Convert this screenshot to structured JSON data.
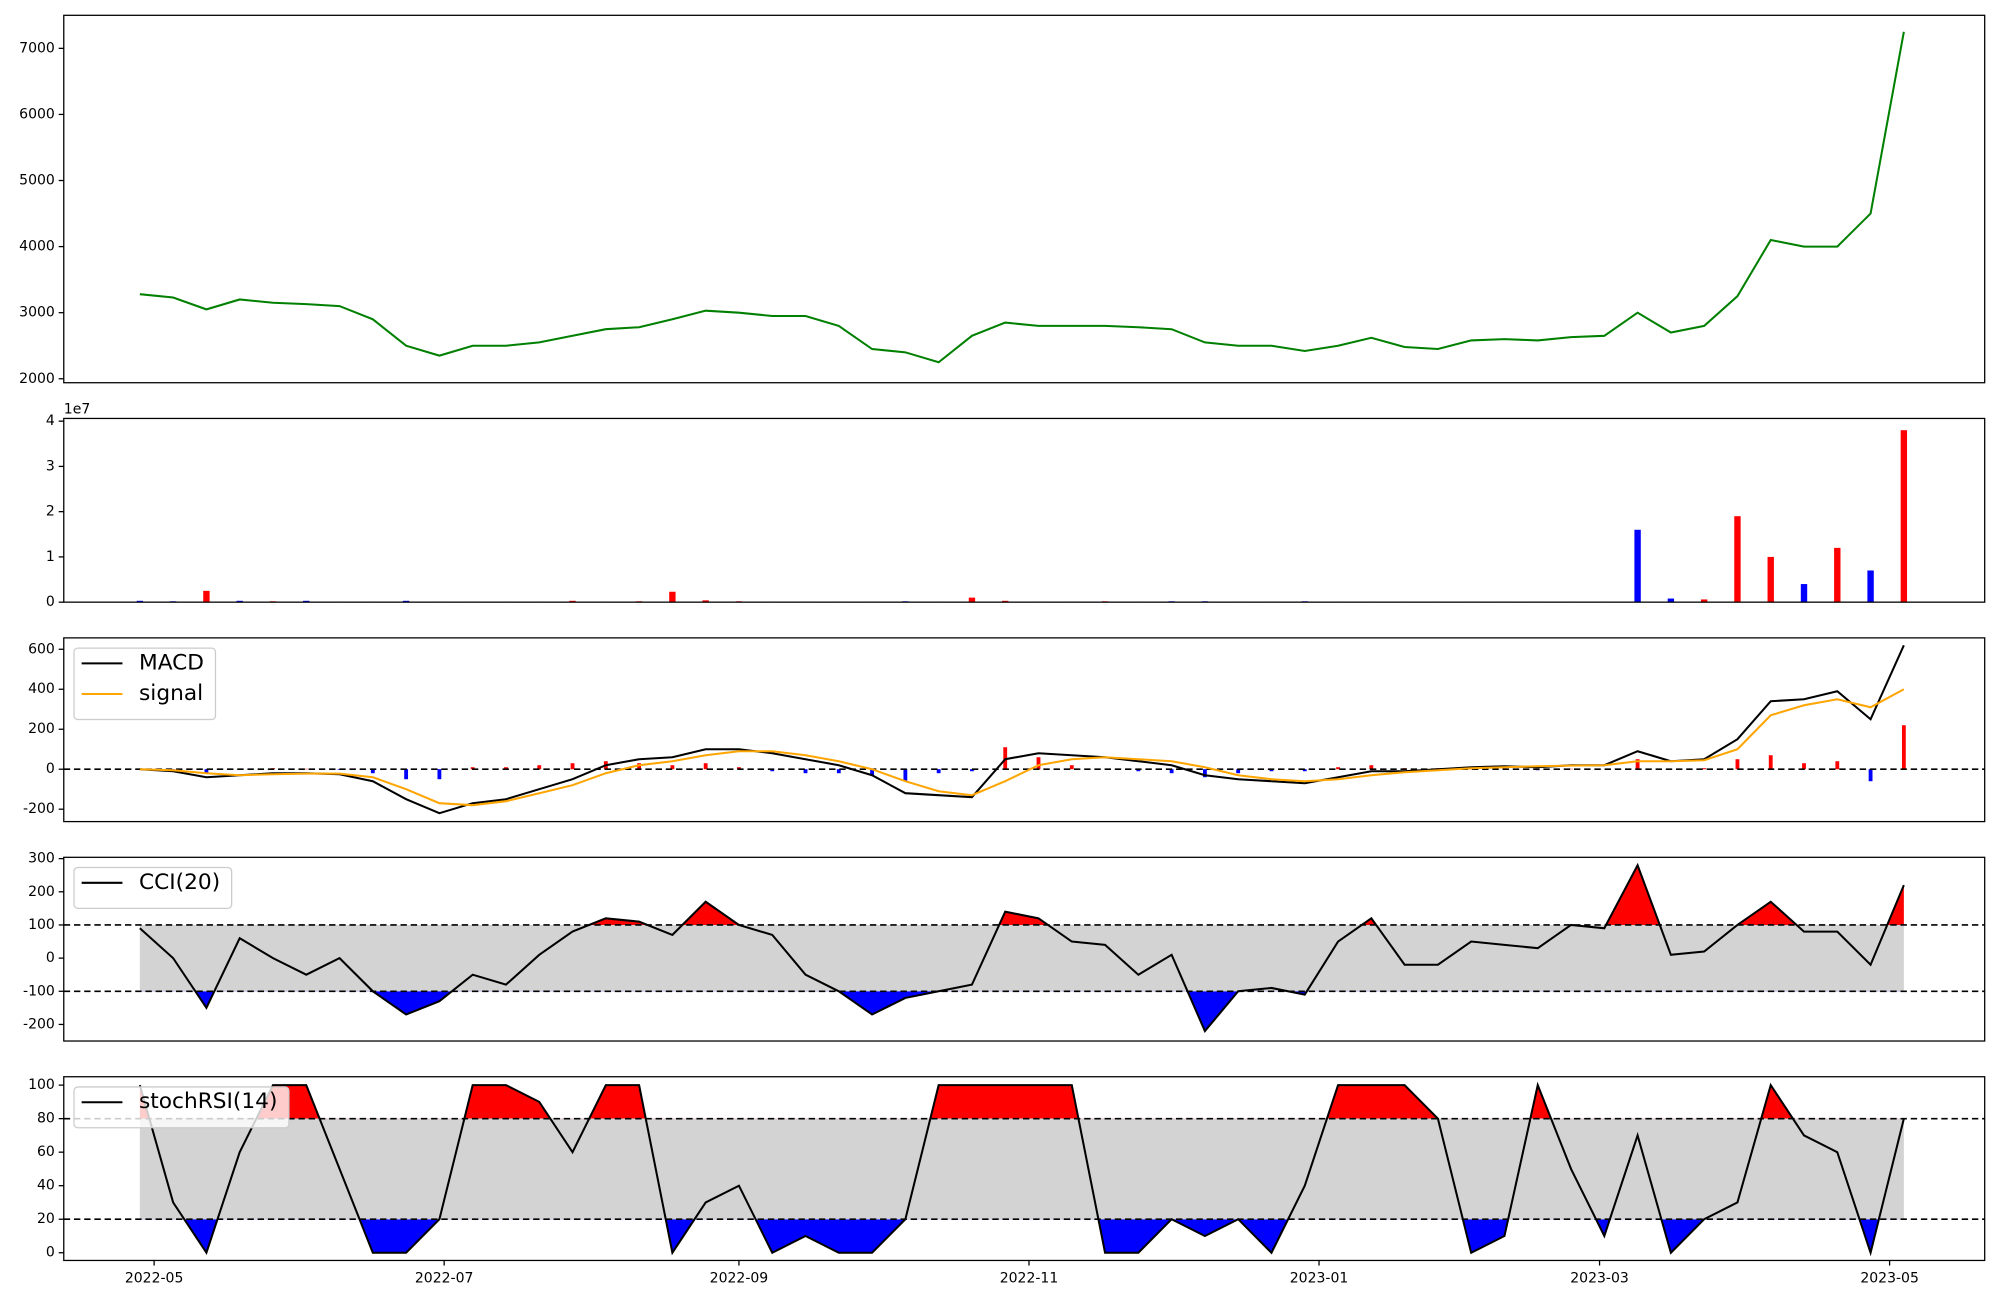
{
  "chart_data": [
    {
      "type": "line",
      "color": "green",
      "x": [
        "2022-04-28",
        "2022-05-05",
        "2022-05-12",
        "2022-05-19",
        "2022-05-26",
        "2022-06-02",
        "2022-06-09",
        "2022-06-16",
        "2022-06-23",
        "2022-06-30",
        "2022-07-07",
        "2022-07-14",
        "2022-07-21",
        "2022-07-28",
        "2022-08-04",
        "2022-08-11",
        "2022-08-18",
        "2022-08-25",
        "2022-09-01",
        "2022-09-08",
        "2022-09-15",
        "2022-09-22",
        "2022-09-29",
        "2022-10-06",
        "2022-10-13",
        "2022-10-20",
        "2022-10-27",
        "2022-11-03",
        "2022-11-10",
        "2022-11-17",
        "2022-11-24",
        "2022-12-01",
        "2022-12-08",
        "2022-12-15",
        "2022-12-22",
        "2022-12-29",
        "2023-01-05",
        "2023-01-12",
        "2023-01-19",
        "2023-01-26",
        "2023-02-02",
        "2023-02-09",
        "2023-02-16",
        "2023-02-23",
        "2023-03-02",
        "2023-03-09",
        "2023-03-16",
        "2023-03-23",
        "2023-03-30",
        "2023-04-06",
        "2023-04-13",
        "2023-04-20",
        "2023-04-27",
        "2023-05-04"
      ],
      "values": [
        3280,
        3230,
        3050,
        3200,
        3150,
        3130,
        3100,
        2900,
        2500,
        2350,
        2500,
        2500,
        2550,
        2650,
        2750,
        2780,
        2900,
        3030,
        3000,
        2950,
        2950,
        2800,
        2450,
        2400,
        2250,
        2650,
        2850,
        2800,
        2800,
        2800,
        2780,
        2750,
        2550,
        2500,
        2500,
        2420,
        2500,
        2620,
        2480,
        2450,
        2580,
        2600,
        2580,
        2630,
        2650,
        3000,
        2700,
        2800,
        3250,
        4100,
        4000,
        4000,
        4500,
        7250
      ],
      "xlim": [
        "2022-04-12",
        "2023-05-21"
      ],
      "ylim": [
        1940,
        7500
      ],
      "yticks": [
        2000,
        3000,
        4000,
        5000,
        6000,
        7000
      ]
    },
    {
      "type": "bar",
      "offset_label": "1e7",
      "x": [
        "2022-04-28",
        "2022-05-05",
        "2022-05-12",
        "2022-05-19",
        "2022-05-26",
        "2022-06-02",
        "2022-06-09",
        "2022-06-16",
        "2022-06-23",
        "2022-06-30",
        "2022-07-07",
        "2022-07-14",
        "2022-07-21",
        "2022-07-28",
        "2022-08-04",
        "2022-08-11",
        "2022-08-18",
        "2022-08-25",
        "2022-09-01",
        "2022-09-08",
        "2022-09-15",
        "2022-09-22",
        "2022-09-29",
        "2022-10-06",
        "2022-10-13",
        "2022-10-20",
        "2022-10-27",
        "2022-11-03",
        "2022-11-10",
        "2022-11-17",
        "2022-11-24",
        "2022-12-01",
        "2022-12-08",
        "2022-12-15",
        "2022-12-22",
        "2022-12-29",
        "2023-01-05",
        "2023-01-12",
        "2023-01-19",
        "2023-01-26",
        "2023-02-02",
        "2023-02-09",
        "2023-02-16",
        "2023-02-23",
        "2023-03-02",
        "2023-03-09",
        "2023-03-16",
        "2023-03-23",
        "2023-03-30",
        "2023-04-06",
        "2023-04-13",
        "2023-04-20",
        "2023-04-27",
        "2023-05-04"
      ],
      "values": [
        300000,
        200000,
        2500000,
        300000,
        200000,
        300000,
        100000,
        100000,
        300000,
        100000,
        100000,
        100000,
        100000,
        300000,
        100000,
        200000,
        2300000,
        400000,
        200000,
        100000,
        100000,
        100000,
        100000,
        200000,
        100000,
        1000000,
        300000,
        100000,
        100000,
        200000,
        100000,
        200000,
        200000,
        100000,
        100000,
        200000,
        100000,
        100000,
        100000,
        100000,
        100000,
        100000,
        100000,
        100000,
        100000,
        16000000,
        800000,
        600000,
        19000000,
        10000000,
        4000000,
        12000000,
        7000000,
        38000000
      ],
      "colors": [
        "blue",
        "blue",
        "red",
        "blue",
        "red",
        "blue",
        "blue",
        "blue",
        "blue",
        "blue",
        "red",
        "red",
        "red",
        "red",
        "red",
        "red",
        "red",
        "red",
        "red",
        "blue",
        "blue",
        "blue",
        "blue",
        "blue",
        "blue",
        "red",
        "red",
        "red",
        "red",
        "red",
        "red",
        "blue",
        "blue",
        "blue",
        "blue",
        "blue",
        "red",
        "red",
        "red",
        "red",
        "red",
        "red",
        "red",
        "red",
        "red",
        "blue",
        "blue",
        "red",
        "red",
        "red",
        "blue",
        "red",
        "blue",
        "red"
      ],
      "xlim": [
        "2022-04-12",
        "2023-05-21"
      ],
      "ylim": [
        0,
        40600000
      ],
      "yticks": [
        0,
        {
          "value": 10000000,
          "label": "1"
        },
        {
          "value": 20000000,
          "label": "2"
        },
        {
          "value": 30000000,
          "label": "3"
        },
        {
          "value": 40000000,
          "label": "4"
        }
      ]
    },
    {
      "type": "macd",
      "hline": 0,
      "up_color": "red",
      "down_color": "blue",
      "x": [
        "2022-04-28",
        "2022-05-05",
        "2022-05-12",
        "2022-05-19",
        "2022-05-26",
        "2022-06-02",
        "2022-06-09",
        "2022-06-16",
        "2022-06-23",
        "2022-06-30",
        "2022-07-07",
        "2022-07-14",
        "2022-07-21",
        "2022-07-28",
        "2022-08-04",
        "2022-08-11",
        "2022-08-18",
        "2022-08-25",
        "2022-09-01",
        "2022-09-08",
        "2022-09-15",
        "2022-09-22",
        "2022-09-29",
        "2022-10-06",
        "2022-10-13",
        "2022-10-20",
        "2022-10-27",
        "2022-11-03",
        "2022-11-10",
        "2022-11-17",
        "2022-11-24",
        "2022-12-01",
        "2022-12-08",
        "2022-12-15",
        "2022-12-22",
        "2022-12-29",
        "2023-01-05",
        "2023-01-12",
        "2023-01-19",
        "2023-01-26",
        "2023-02-02",
        "2023-02-09",
        "2023-02-16",
        "2023-02-23",
        "2023-03-02",
        "2023-03-09",
        "2023-03-16",
        "2023-03-23",
        "2023-03-30",
        "2023-04-06",
        "2023-04-13",
        "2023-04-20",
        "2023-04-27",
        "2023-05-04"
      ],
      "series": [
        {
          "name": "MACD",
          "color": "black",
          "values": [
            0,
            -10,
            -40,
            -30,
            -20,
            -20,
            -25,
            -60,
            -150,
            -220,
            -170,
            -150,
            -100,
            -50,
            20,
            50,
            60,
            100,
            100,
            80,
            50,
            20,
            -30,
            -120,
            -130,
            -140,
            50,
            80,
            70,
            60,
            40,
            20,
            -30,
            -50,
            -60,
            -70,
            -40,
            -10,
            -10,
            0,
            10,
            15,
            10,
            20,
            20,
            90,
            40,
            50,
            150,
            340,
            350,
            390,
            250,
            620
          ]
        },
        {
          "name": "signal",
          "color": "orange",
          "values": [
            0,
            -5,
            -20,
            -30,
            -25,
            -22,
            -22,
            -40,
            -100,
            -170,
            -180,
            -160,
            -120,
            -80,
            -20,
            20,
            40,
            70,
            90,
            90,
            70,
            40,
            0,
            -60,
            -110,
            -130,
            -60,
            20,
            50,
            60,
            50,
            40,
            10,
            -30,
            -50,
            -60,
            -50,
            -30,
            -15,
            -5,
            5,
            10,
            15,
            18,
            20,
            40,
            40,
            45,
            100,
            270,
            320,
            350,
            310,
            400
          ]
        }
      ],
      "histogram": [
        0,
        -5,
        -20,
        0,
        5,
        2,
        -3,
        -20,
        -50,
        -50,
        10,
        10,
        20,
        30,
        40,
        30,
        20,
        30,
        10,
        -10,
        -20,
        -20,
        -30,
        -60,
        -20,
        -10,
        110,
        60,
        20,
        0,
        -10,
        -20,
        -40,
        -20,
        -10,
        -10,
        10,
        20,
        5,
        5,
        5,
        5,
        -5,
        2,
        0,
        50,
        0,
        5,
        50,
        70,
        30,
        40,
        -60,
        220
      ],
      "xlim": [
        "2022-04-12",
        "2023-05-21"
      ],
      "ylim": [
        -262,
        657
      ],
      "yticks": [
        -200,
        0,
        200,
        400,
        600
      ]
    },
    {
      "type": "oscillator",
      "upper": 100,
      "lower": -100,
      "upper_color": "red",
      "lower_color": "blue",
      "band_color": "lightgray",
      "x": [
        "2022-04-28",
        "2022-05-05",
        "2022-05-12",
        "2022-05-19",
        "2022-05-26",
        "2022-06-02",
        "2022-06-09",
        "2022-06-16",
        "2022-06-23",
        "2022-06-30",
        "2022-07-07",
        "2022-07-14",
        "2022-07-21",
        "2022-07-28",
        "2022-08-04",
        "2022-08-11",
        "2022-08-18",
        "2022-08-25",
        "2022-09-01",
        "2022-09-08",
        "2022-09-15",
        "2022-09-22",
        "2022-09-29",
        "2022-10-06",
        "2022-10-13",
        "2022-10-20",
        "2022-10-27",
        "2022-11-03",
        "2022-11-10",
        "2022-11-17",
        "2022-11-24",
        "2022-12-01",
        "2022-12-08",
        "2022-12-15",
        "2022-12-22",
        "2022-12-29",
        "2023-01-05",
        "2023-01-12",
        "2023-01-19",
        "2023-01-26",
        "2023-02-02",
        "2023-02-09",
        "2023-02-16",
        "2023-02-23",
        "2023-03-02",
        "2023-03-09",
        "2023-03-16",
        "2023-03-23",
        "2023-03-30",
        "2023-04-06",
        "2023-04-13",
        "2023-04-20",
        "2023-04-27",
        "2023-05-04"
      ],
      "series": [
        {
          "name": "CCI(20)",
          "color": "black",
          "values": [
            90,
            0,
            -150,
            60,
            0,
            -50,
            0,
            -100,
            -170,
            -130,
            -50,
            -80,
            10,
            80,
            120,
            110,
            70,
            170,
            100,
            70,
            -50,
            -100,
            -170,
            -120,
            -100,
            -80,
            140,
            120,
            50,
            40,
            -50,
            10,
            -220,
            -100,
            -90,
            -110,
            50,
            120,
            -20,
            -20,
            50,
            40,
            30,
            100,
            90,
            280,
            10,
            20,
            100,
            170,
            80,
            80,
            -20,
            220
          ]
        }
      ],
      "xlim": [
        "2022-04-12",
        "2023-05-21"
      ],
      "ylim": [
        -250,
        304
      ],
      "yticks": [
        -200,
        -100,
        0,
        100,
        200,
        300
      ]
    },
    {
      "type": "oscillator",
      "upper": 80,
      "lower": 20,
      "upper_color": "red",
      "lower_color": "blue",
      "band_color": "lightgray",
      "x": [
        "2022-04-28",
        "2022-05-05",
        "2022-05-12",
        "2022-05-19",
        "2022-05-26",
        "2022-06-02",
        "2022-06-09",
        "2022-06-16",
        "2022-06-23",
        "2022-06-30",
        "2022-07-07",
        "2022-07-14",
        "2022-07-21",
        "2022-07-28",
        "2022-08-04",
        "2022-08-11",
        "2022-08-18",
        "2022-08-25",
        "2022-09-01",
        "2022-09-08",
        "2022-09-15",
        "2022-09-22",
        "2022-09-29",
        "2022-10-06",
        "2022-10-13",
        "2022-10-20",
        "2022-10-27",
        "2022-11-03",
        "2022-11-10",
        "2022-11-17",
        "2022-11-24",
        "2022-12-01",
        "2022-12-08",
        "2022-12-15",
        "2022-12-22",
        "2022-12-29",
        "2023-01-05",
        "2023-01-12",
        "2023-01-19",
        "2023-01-26",
        "2023-02-02",
        "2023-02-09",
        "2023-02-16",
        "2023-02-23",
        "2023-03-02",
        "2023-03-09",
        "2023-03-16",
        "2023-03-23",
        "2023-03-30",
        "2023-04-06",
        "2023-04-13",
        "2023-04-20",
        "2023-04-27",
        "2023-05-04"
      ],
      "series": [
        {
          "name": "stochRSI(14)",
          "color": "black",
          "values": [
            100,
            30,
            0,
            60,
            100,
            100,
            50,
            0,
            0,
            20,
            100,
            100,
            90,
            60,
            100,
            100,
            0,
            30,
            40,
            0,
            10,
            0,
            0,
            20,
            100,
            100,
            100,
            100,
            100,
            0,
            0,
            20,
            10,
            20,
            0,
            40,
            100,
            100,
            100,
            80,
            0,
            10,
            100,
            50,
            10,
            70,
            0,
            20,
            30,
            100,
            70,
            60,
            0,
            80
          ]
        }
      ],
      "xlim": [
        "2022-04-12",
        "2023-05-21"
      ],
      "ylim": [
        -4.6,
        105
      ],
      "yticks": [
        0,
        20,
        40,
        60,
        80,
        100
      ],
      "xticks": [
        {
          "value": "2022-05-01",
          "label": "2022-05"
        },
        {
          "value": "2022-07-01",
          "label": "2022-07"
        },
        {
          "value": "2022-09-01",
          "label": "2022-09"
        },
        {
          "value": "2022-11-01",
          "label": "2022-11"
        },
        {
          "value": "2023-01-01",
          "label": "2023-01"
        },
        {
          "value": "2023-03-01",
          "label": "2023-03"
        },
        {
          "value": "2023-05-01",
          "label": "2023-05"
        }
      ]
    }
  ]
}
